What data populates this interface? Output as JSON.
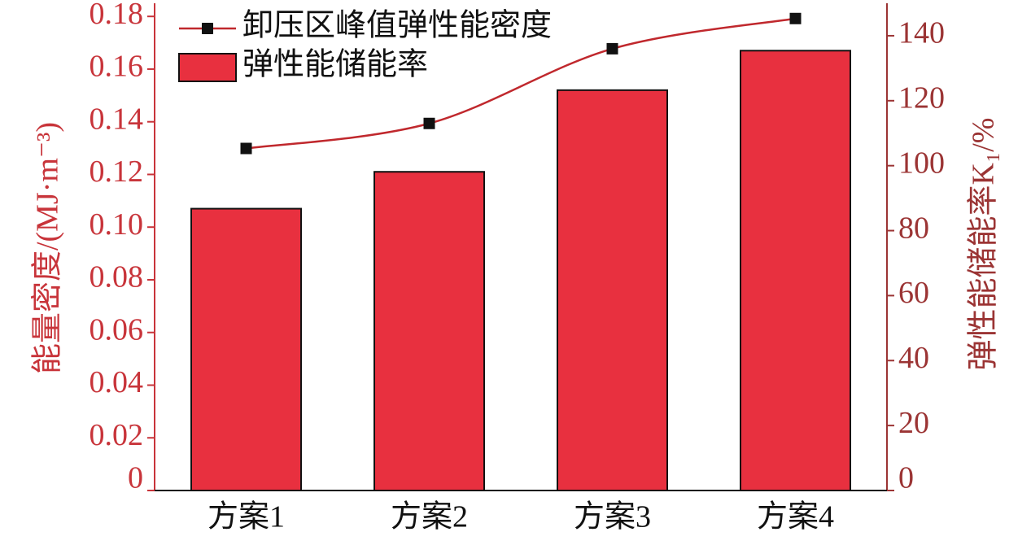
{
  "chart_data": {
    "type": "bar_line",
    "categories": [
      "方案1",
      "方案2",
      "方案3",
      "方案4"
    ],
    "y_label": "能量密度/(MJ·m⁻³)",
    "y2_label": "弹性能储能率K₁/%",
    "ylim": [
      0,
      0.185
    ],
    "yticks": [
      0,
      0.02,
      0.04,
      0.06,
      0.08,
      {
        "value": 0.1,
        "label": "0.10"
      },
      0.12,
      0.14,
      0.16,
      0.18
    ],
    "y2lim": [
      0,
      150
    ],
    "y2ticks": [
      0,
      20,
      40,
      60,
      80,
      100,
      120,
      140
    ],
    "legend": "top-left",
    "series": [
      {
        "name": "卸压区峰值弹性能密度",
        "type": "line",
        "color": "#c0282d",
        "values": [
          105.3,
          113,
          136,
          145.3
        ],
        "axis": "y2"
      },
      {
        "name": "弹性能储能率",
        "type": "bar",
        "color": "#e8303f",
        "values": [
          0.107,
          0.121,
          0.152,
          0.167
        ]
      }
    ]
  }
}
